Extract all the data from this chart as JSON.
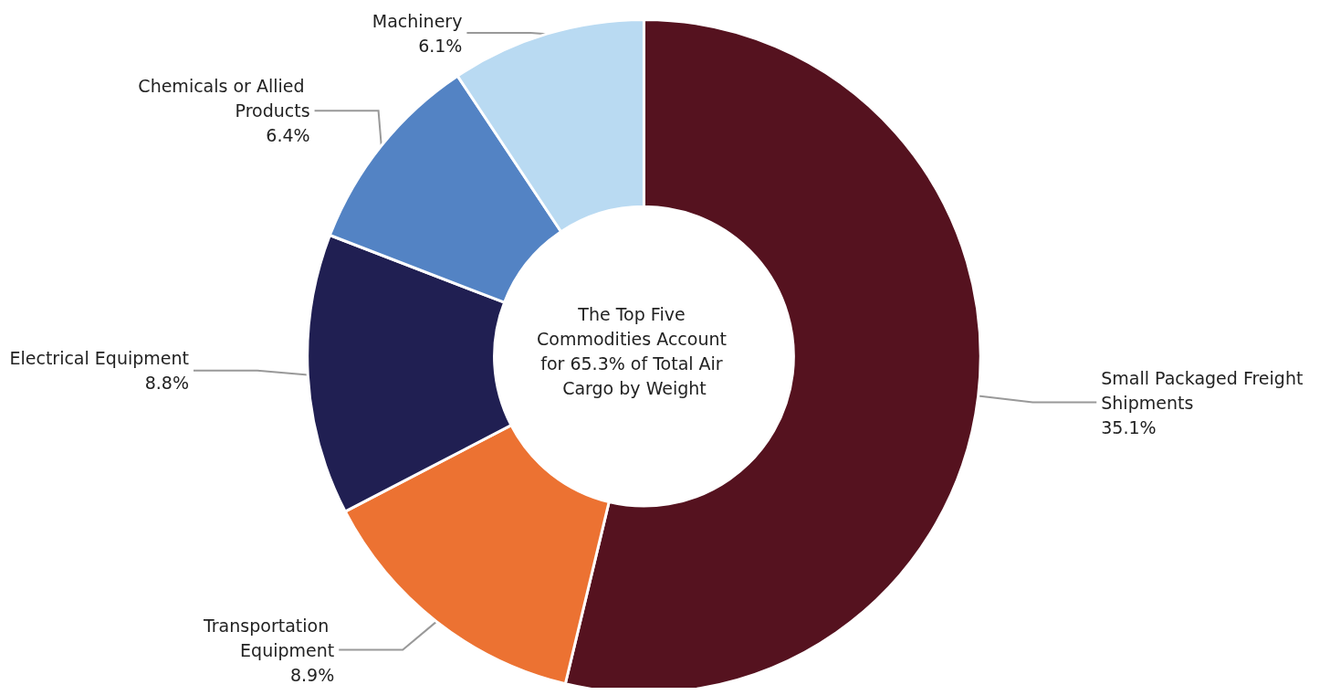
{
  "chart_data": {
    "type": "donut",
    "categories": [
      "Small Packaged Freight Shipments",
      "Transportation Equipment",
      "Electrical Equipment",
      "Chemicals or Allied Products",
      "Machinery"
    ],
    "values": [
      35.1,
      8.9,
      8.8,
      6.4,
      6.1
    ],
    "value_labels": [
      "35.1%",
      "8.9%",
      "8.8%",
      "6.4%",
      "6.1%"
    ],
    "colors": [
      "#55121f",
      "#ec7232",
      "#201f52",
      "#5383c4",
      "#b9daf2"
    ],
    "annotations": [
      "The Top Five Commodities Account for 65.3% of Total Air Cargo by Weight"
    ],
    "legend": false
  }
}
